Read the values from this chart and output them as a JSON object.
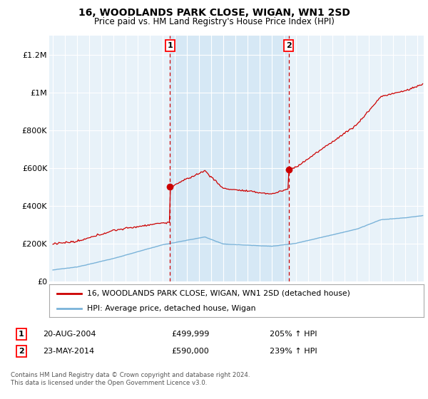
{
  "title": "16, WOODLANDS PARK CLOSE, WIGAN, WN1 2SD",
  "subtitle": "Price paid vs. HM Land Registry's House Price Index (HPI)",
  "title_fontsize": 10,
  "subtitle_fontsize": 8.5,
  "ylabel_ticks": [
    "£0",
    "£200K",
    "£400K",
    "£600K",
    "£800K",
    "£1M",
    "£1.2M"
  ],
  "ytick_vals": [
    0,
    200000,
    400000,
    600000,
    800000,
    1000000,
    1200000
  ],
  "ylim": [
    0,
    1300000
  ],
  "xlim_start": 1994.7,
  "xlim_end": 2025.5,
  "sale1_x": 2004.63,
  "sale1_y": 499999,
  "sale1_label": "20-AUG-2004",
  "sale1_price": "£499,999",
  "sale1_hpi": "205% ↑ HPI",
  "sale2_x": 2014.39,
  "sale2_y": 590000,
  "sale2_label": "23-MAY-2014",
  "sale2_price": "£590,000",
  "sale2_hpi": "239% ↑ HPI",
  "red_color": "#cc0000",
  "blue_color": "#7ab3d9",
  "shade_color": "#d6e8f5",
  "bg_color": "#e8f2f9",
  "legend_line1": "16, WOODLANDS PARK CLOSE, WIGAN, WN1 2SD (detached house)",
  "legend_line2": "HPI: Average price, detached house, Wigan",
  "footer1": "Contains HM Land Registry data © Crown copyright and database right 2024.",
  "footer2": "This data is licensed under the Open Government Licence v3.0."
}
